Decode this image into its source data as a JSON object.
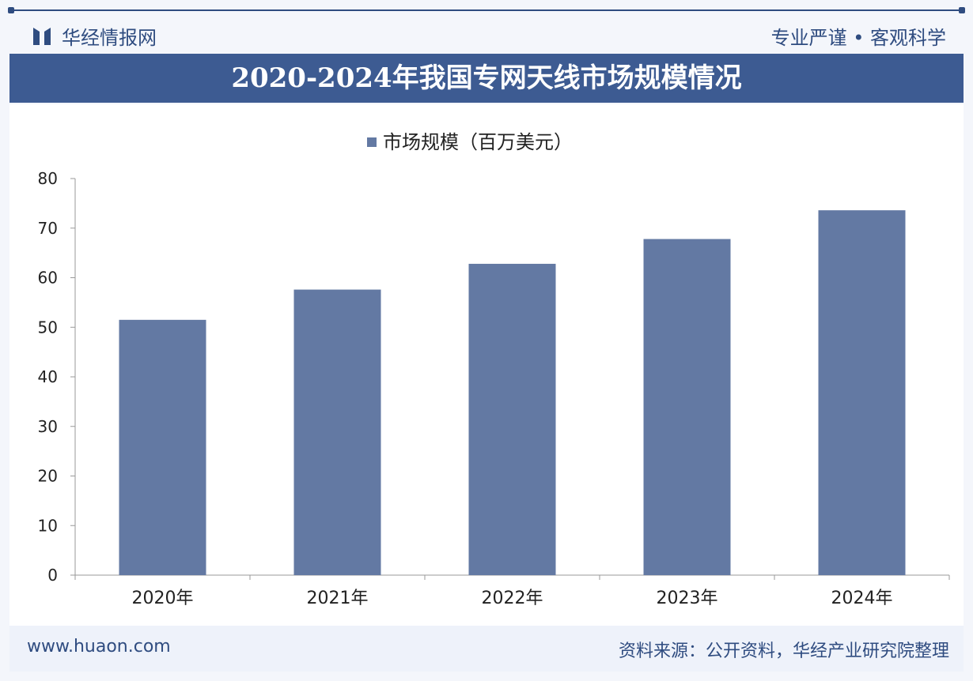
{
  "header": {
    "brand": "华经情报网",
    "slogan": "专业严谨 • 客观科学",
    "title": "2020-2024年我国专网天线市场规模情况"
  },
  "footer": {
    "site": "www.huaon.com",
    "source": "资料来源：公开资料，华经产业研究院整理"
  },
  "colors": {
    "bar": "#6379a3",
    "primary": "#3d5b92"
  },
  "chart_data": {
    "type": "bar",
    "title": "2020-2024年我国专网天线市场规模情况",
    "categories": [
      "2020年",
      "2021年",
      "2022年",
      "2023年",
      "2024年"
    ],
    "series": [
      {
        "name": "市场规模（百万美元）",
        "values": [
          51.5,
          57.6,
          62.8,
          67.8,
          73.6
        ]
      }
    ],
    "ylim": [
      0,
      80
    ],
    "yticks": [
      0,
      10,
      20,
      30,
      40,
      50,
      60,
      70,
      80
    ],
    "legend": "top-center",
    "grid": false
  }
}
